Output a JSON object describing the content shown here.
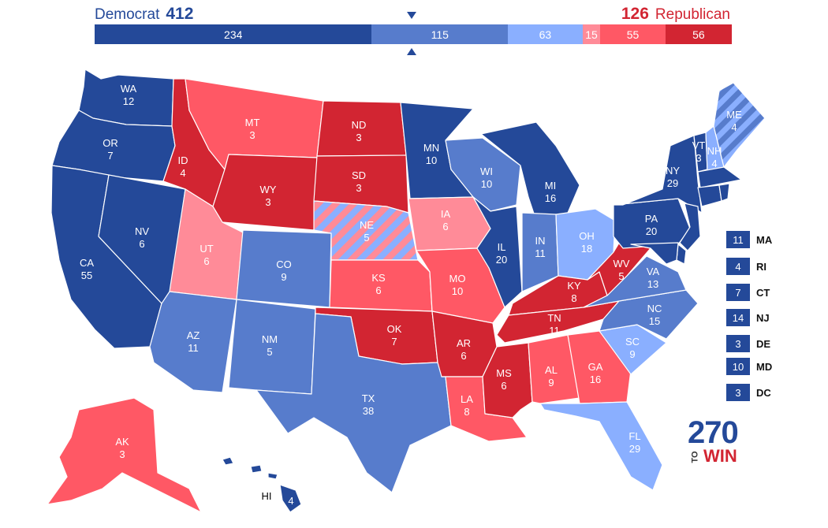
{
  "header": {
    "dem_label": "Democrat",
    "dem_total": "412",
    "rep_total": "126",
    "rep_label": "Republican"
  },
  "bar_segments": [
    {
      "label": "234",
      "value": 234,
      "color": "#244999"
    },
    {
      "label": "115",
      "value": 115,
      "color": "#577ccc"
    },
    {
      "label": "63",
      "value": 63,
      "color": "#8aafff"
    },
    {
      "label": "15",
      "value": 15,
      "color": "#ff8b98"
    },
    {
      "label": "55",
      "value": 55,
      "color": "#ff5865"
    },
    {
      "label": "56",
      "value": 56,
      "color": "#d22532"
    }
  ],
  "colors": {
    "safe_dem": "#244999",
    "likely_dem": "#577ccc",
    "lean_dem": "#8aafff",
    "lean_rep": "#ff8b98",
    "likely_rep": "#ff5865",
    "safe_rep": "#d22532"
  },
  "states": {
    "WA": {
      "abbr": "WA",
      "ev": "12",
      "rating": "safe_dem"
    },
    "OR": {
      "abbr": "OR",
      "ev": "7",
      "rating": "safe_dem"
    },
    "CA": {
      "abbr": "CA",
      "ev": "55",
      "rating": "safe_dem"
    },
    "NV": {
      "abbr": "NV",
      "ev": "6",
      "rating": "safe_dem"
    },
    "ID": {
      "abbr": "ID",
      "ev": "4",
      "rating": "safe_rep"
    },
    "MT": {
      "abbr": "MT",
      "ev": "3",
      "rating": "likely_rep"
    },
    "WY": {
      "abbr": "WY",
      "ev": "3",
      "rating": "safe_rep"
    },
    "UT": {
      "abbr": "UT",
      "ev": "6",
      "rating": "lean_rep"
    },
    "AZ": {
      "abbr": "AZ",
      "ev": "11",
      "rating": "likely_dem"
    },
    "CO": {
      "abbr": "CO",
      "ev": "9",
      "rating": "likely_dem"
    },
    "NM": {
      "abbr": "NM",
      "ev": "5",
      "rating": "likely_dem"
    },
    "ND": {
      "abbr": "ND",
      "ev": "3",
      "rating": "safe_rep"
    },
    "SD": {
      "abbr": "SD",
      "ev": "3",
      "rating": "safe_rep"
    },
    "NE": {
      "abbr": "NE",
      "ev": "5",
      "rating": "split"
    },
    "KS": {
      "abbr": "KS",
      "ev": "6",
      "rating": "likely_rep"
    },
    "OK": {
      "abbr": "OK",
      "ev": "7",
      "rating": "safe_rep"
    },
    "TX": {
      "abbr": "TX",
      "ev": "38",
      "rating": "likely_dem"
    },
    "MN": {
      "abbr": "MN",
      "ev": "10",
      "rating": "safe_dem"
    },
    "IA": {
      "abbr": "IA",
      "ev": "6",
      "rating": "lean_rep"
    },
    "MO": {
      "abbr": "MO",
      "ev": "10",
      "rating": "likely_rep"
    },
    "AR": {
      "abbr": "AR",
      "ev": "6",
      "rating": "safe_rep"
    },
    "LA": {
      "abbr": "LA",
      "ev": "8",
      "rating": "likely_rep"
    },
    "WI": {
      "abbr": "WI",
      "ev": "10",
      "rating": "likely_dem"
    },
    "IL": {
      "abbr": "IL",
      "ev": "20",
      "rating": "safe_dem"
    },
    "MI": {
      "abbr": "MI",
      "ev": "16",
      "rating": "safe_dem"
    },
    "IN": {
      "abbr": "IN",
      "ev": "11",
      "rating": "likely_dem"
    },
    "OH": {
      "abbr": "OH",
      "ev": "18",
      "rating": "lean_dem"
    },
    "KY": {
      "abbr": "KY",
      "ev": "8",
      "rating": "safe_rep"
    },
    "TN": {
      "abbr": "TN",
      "ev": "11",
      "rating": "safe_rep"
    },
    "MS": {
      "abbr": "MS",
      "ev": "6",
      "rating": "safe_rep"
    },
    "AL": {
      "abbr": "AL",
      "ev": "9",
      "rating": "likely_rep"
    },
    "GA": {
      "abbr": "GA",
      "ev": "16",
      "rating": "likely_rep"
    },
    "FL": {
      "abbr": "FL",
      "ev": "29",
      "rating": "lean_dem"
    },
    "SC": {
      "abbr": "SC",
      "ev": "9",
      "rating": "lean_dem"
    },
    "NC": {
      "abbr": "NC",
      "ev": "15",
      "rating": "likely_dem"
    },
    "VA": {
      "abbr": "VA",
      "ev": "13",
      "rating": "likely_dem"
    },
    "WV": {
      "abbr": "WV",
      "ev": "5",
      "rating": "safe_rep"
    },
    "PA": {
      "abbr": "PA",
      "ev": "20",
      "rating": "safe_dem"
    },
    "NY": {
      "abbr": "NY",
      "ev": "29",
      "rating": "safe_dem"
    },
    "VT": {
      "abbr": "VT",
      "ev": "3",
      "rating": "safe_dem"
    },
    "NH": {
      "abbr": "NH",
      "ev": "4",
      "rating": "lean_dem"
    },
    "ME": {
      "abbr": "ME",
      "ev": "4",
      "rating": "split"
    },
    "AK": {
      "abbr": "AK",
      "ev": "3",
      "rating": "likely_rep"
    },
    "HI": {
      "abbr": "HI",
      "ev": "4",
      "rating": "safe_dem"
    }
  },
  "small_states": [
    {
      "abbr": "MA",
      "ev": "11"
    },
    {
      "abbr": "RI",
      "ev": "4"
    },
    {
      "abbr": "CT",
      "ev": "7"
    },
    {
      "abbr": "NJ",
      "ev": "14"
    },
    {
      "abbr": "DE",
      "ev": "3"
    },
    {
      "abbr": "MD",
      "ev": "10"
    },
    {
      "abbr": "DC",
      "ev": "3"
    }
  ],
  "logo": {
    "top": "270",
    "to": "TO",
    "win": "WIN"
  }
}
